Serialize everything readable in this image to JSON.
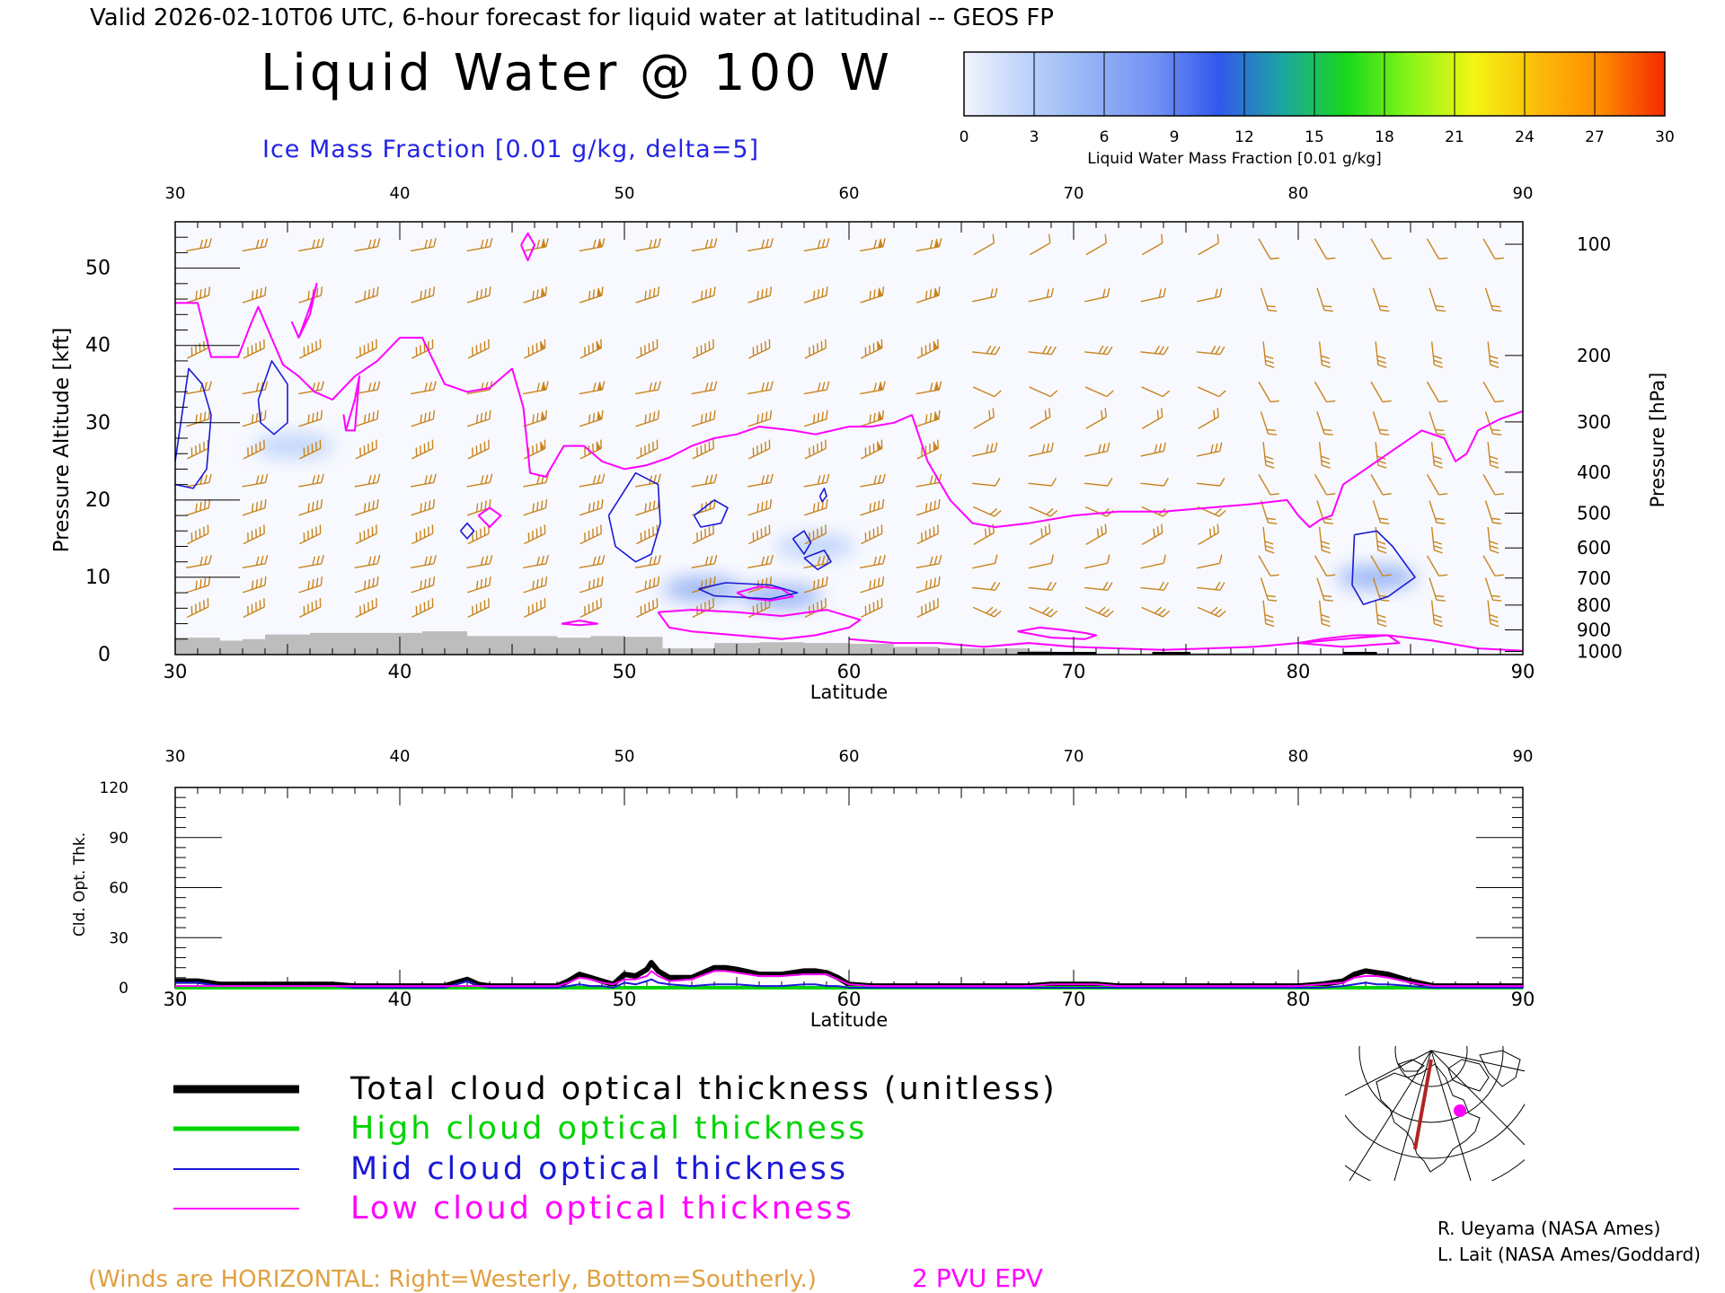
{
  "header": {
    "valid_line": "Valid 2026-02-10T06 UTC, 6-hour forecast for liquid water at latitudinal -- GEOS FP",
    "title": "Liquid Water @ 100 W",
    "ice_label": "Ice Mass Fraction [0.01 g/kg, delta=5]"
  },
  "colorbar": {
    "ticks": [
      "0",
      "3",
      "6",
      "9",
      "12",
      "15",
      "18",
      "21",
      "24",
      "27",
      "30"
    ],
    "label": "Liquid Water Mass Fraction [0.01 g/kg]",
    "colors": [
      "#f1f4fd",
      "#bcd2fa",
      "#94b2f5",
      "#7391f3",
      "#3158ee",
      "#1da6a1",
      "#17d81a",
      "#88f519",
      "#f3f514",
      "#fbbc09",
      "#fd8a00",
      "#f52b00"
    ]
  },
  "colors": {
    "ice_contour": "#1a1ad6",
    "epv_contour": "#ff00ff",
    "wind_barb": "#c8841e",
    "terrain": "#bdbdbd",
    "total_line": "#000000",
    "high_line": "#00d400",
    "mid_line": "#1a1ad6",
    "low_line": "#ff00ff"
  },
  "chart_data": [
    {
      "type": "heatmap",
      "title": "Liquid Water @ 100 W",
      "xlabel": "Latitude",
      "ylabel_left": "Pressure Altitude [kft]",
      "ylabel_right": "Pressure [hPa]",
      "x_ticks": [
        "30",
        "40",
        "50",
        "60",
        "70",
        "80",
        "90"
      ],
      "top_x_ticks": [
        "30",
        "40",
        "50",
        "60",
        "70",
        "80",
        "90"
      ],
      "y_ticks": [
        "0",
        "10",
        "20",
        "30",
        "40",
        "50"
      ],
      "pressure_ticks": [
        "100",
        "200",
        "300",
        "400",
        "500",
        "600",
        "700",
        "800",
        "900",
        "1000"
      ],
      "xlim": [
        30,
        90
      ],
      "ylim": [
        0,
        56
      ],
      "liquid_water_patches": [
        {
          "lat": 53.5,
          "alt": 8.5,
          "value": 2
        },
        {
          "lat": 57.0,
          "alt": 7.5,
          "value": 2
        },
        {
          "lat": 83.5,
          "alt": 10.0,
          "value": 2
        },
        {
          "lat": 35.3,
          "alt": 27.0,
          "value": 1
        },
        {
          "lat": 58.5,
          "alt": 14.0,
          "value": 1
        }
      ],
      "ice_contours": [
        {
          "lat": [
            30.0,
            30.8,
            31.4,
            31.6,
            31.2,
            30.6,
            30.0
          ],
          "alt": [
            22.0,
            21.5,
            24.0,
            31.0,
            35.0,
            37.0,
            25.0
          ]
        },
        {
          "lat": [
            33.7,
            34.3,
            35.0,
            35.0,
            34.4,
            33.8,
            33.7
          ],
          "alt": [
            33.0,
            38.0,
            35.0,
            30.0,
            28.5,
            30.0,
            33.0
          ]
        },
        {
          "lat": [
            42.7,
            43.0,
            43.3,
            43.0,
            42.7
          ],
          "alt": [
            16.0,
            17.0,
            16.0,
            15.0,
            16.0
          ]
        },
        {
          "lat": [
            49.3,
            50.5,
            51.5,
            51.6,
            51.2,
            50.5,
            49.6,
            49.3
          ],
          "alt": [
            18.0,
            23.5,
            22.0,
            17.0,
            13.0,
            12.0,
            14.0,
            18.0
          ]
        },
        {
          "lat": [
            53.1,
            54.0,
            54.6,
            54.3,
            53.4,
            53.1
          ],
          "alt": [
            18.0,
            20.0,
            19.0,
            17.0,
            16.5,
            18.0
          ]
        },
        {
          "lat": [
            53.3,
            54.5,
            56.5,
            57.7,
            56.5,
            54.0,
            53.3
          ],
          "alt": [
            8.5,
            9.3,
            9.0,
            8.0,
            7.2,
            7.6,
            8.5
          ]
        },
        {
          "lat": [
            57.5,
            58.0,
            58.3,
            58.0,
            57.5
          ],
          "alt": [
            15.0,
            16.0,
            14.5,
            13.0,
            15.0
          ]
        },
        {
          "lat": [
            58.0,
            58.9,
            59.2,
            58.6,
            58.0
          ],
          "alt": [
            12.5,
            13.5,
            12.0,
            11.0,
            12.5
          ]
        },
        {
          "lat": [
            58.7,
            58.9,
            59.0,
            58.8,
            58.7
          ],
          "alt": [
            20.5,
            21.5,
            20.5,
            19.8,
            20.5
          ]
        },
        {
          "lat": [
            82.5,
            83.5,
            84.2,
            85.2,
            84.0,
            82.9,
            82.4,
            82.5
          ],
          "alt": [
            15.5,
            16.0,
            14.0,
            10.0,
            7.5,
            6.5,
            9.0,
            15.5
          ]
        }
      ],
      "epv_contours": [
        {
          "lat": [
            30.0,
            31.0,
            31.6,
            32.8,
            33.4,
            33.7,
            34.8,
            35.5,
            36.2,
            37.0,
            38.0,
            39.0,
            40.0,
            41.0,
            42.0,
            43.0,
            44.0,
            45.0,
            45.5,
            45.8,
            46.5,
            47.3,
            48.2,
            49.0,
            50.0,
            51.0,
            52.0,
            53.0,
            54.0,
            55.0,
            56.0,
            57.5,
            58.5,
            60.0,
            61.0,
            62.0,
            62.8,
            63.5,
            64.5,
            65.5,
            66.5,
            68.0,
            70.0,
            72.0,
            74.0,
            76.0,
            78.0,
            79.5,
            80.0,
            80.5,
            81.0,
            81.5,
            82.0,
            83.0,
            84.0,
            85.5,
            86.5,
            87.0,
            87.5,
            88.0,
            89.0,
            90.0
          ],
          "alt": [
            45.5,
            45.5,
            38.5,
            38.5,
            43.0,
            45.0,
            37.5,
            36.0,
            34.0,
            33.0,
            36.0,
            38.0,
            41.0,
            41.0,
            35.0,
            34.0,
            34.5,
            37.0,
            32.0,
            23.5,
            23.0,
            27.0,
            27.0,
            25.0,
            24.0,
            24.5,
            25.5,
            27.0,
            28.0,
            28.5,
            29.5,
            29.0,
            28.5,
            29.5,
            29.5,
            30.0,
            31.0,
            25.0,
            20.0,
            17.0,
            16.5,
            17.0,
            18.0,
            18.5,
            18.5,
            19.0,
            19.5,
            20.0,
            18.0,
            16.5,
            17.5,
            18.0,
            22.0,
            24.0,
            26.0,
            29.0,
            28.0,
            25.0,
            26.0,
            29.0,
            30.5,
            31.5
          ]
        },
        {
          "lat": [
            35.5,
            36.0,
            36.3,
            36.0,
            35.5,
            35.2,
            35.5
          ],
          "alt": [
            41.0,
            44.0,
            48.0,
            45.0,
            41.0,
            43.0,
            41.0
          ]
        },
        {
          "lat": [
            37.6,
            38.0,
            38.2,
            38.0,
            37.6,
            37.5,
            37.6
          ],
          "alt": [
            29.0,
            33.0,
            36.0,
            29.0,
            29.0,
            31.0,
            29.0
          ]
        },
        {
          "lat": [
            45.4,
            45.7,
            46.0,
            45.7,
            45.4
          ],
          "alt": [
            53.0,
            51.0,
            53.0,
            54.5,
            53.0
          ]
        },
        {
          "lat": [
            43.5,
            44.0,
            44.5,
            44.0,
            43.5
          ],
          "alt": [
            18.0,
            19.0,
            18.0,
            16.5,
            18.0
          ]
        },
        {
          "lat": [
            47.2,
            48.0,
            48.8,
            48.0,
            47.2
          ],
          "alt": [
            4.0,
            4.4,
            4.0,
            3.8,
            4.0
          ]
        },
        {
          "lat": [
            51.5,
            53.0,
            55.0,
            57.0,
            59.0,
            60.5,
            60.0,
            58.5,
            57.0,
            55.0,
            53.0,
            52.0,
            51.5
          ],
          "alt": [
            5.5,
            5.8,
            5.5,
            5.0,
            5.8,
            4.5,
            3.5,
            2.5,
            2.0,
            2.5,
            3.0,
            3.5,
            5.5
          ]
        },
        {
          "lat": [
            55.0,
            56.0,
            57.0,
            57.5,
            56.5,
            55.5,
            55.0
          ],
          "alt": [
            8.0,
            8.8,
            8.5,
            7.5,
            7.0,
            7.3,
            8.0
          ]
        },
        {
          "lat": [
            60.0,
            62.0,
            64.0,
            66.0,
            68.0,
            70.0,
            72.0,
            74.0,
            76.0,
            78.0,
            80.0,
            82.0,
            84.0,
            86.0,
            88.0,
            90.0
          ],
          "alt": [
            2.0,
            1.5,
            1.5,
            1.0,
            1.5,
            1.0,
            0.8,
            0.6,
            0.8,
            1.0,
            1.5,
            2.0,
            2.5,
            1.8,
            0.8,
            0.5
          ]
        },
        {
          "lat": [
            67.5,
            68.5,
            69.5,
            70.5,
            71.0,
            70.5,
            69.0,
            67.5
          ],
          "alt": [
            3.0,
            3.5,
            3.2,
            2.8,
            2.5,
            2.0,
            2.2,
            3.0
          ]
        },
        {
          "lat": [
            80.0,
            81.0,
            82.5,
            84.0,
            84.5,
            83.0,
            82.0,
            80.0
          ],
          "alt": [
            1.5,
            2.0,
            2.5,
            2.5,
            1.5,
            1.2,
            1.0,
            1.5
          ]
        }
      ],
      "terrain": {
        "lat": [
          30.0,
          31.0,
          32.0,
          33.0,
          34.0,
          35.0,
          36.0,
          38.0,
          40.0,
          41.0,
          43.0,
          45.0,
          47.0,
          48.5,
          50.0,
          51.0,
          51.7,
          52.5,
          54.0,
          56.0,
          58.0,
          60.0,
          62.0,
          64.0,
          66.0,
          68.0,
          69.0,
          70.0,
          72.0,
          74.0,
          76.0,
          78.0,
          80.0,
          82.0,
          84.0,
          86.0,
          88.0,
          90.0
        ],
        "alt": [
          2.2,
          2.2,
          1.8,
          2.0,
          2.6,
          2.6,
          2.8,
          2.8,
          2.8,
          3.0,
          2.4,
          2.4,
          2.2,
          2.4,
          2.3,
          2.3,
          0.8,
          0.8,
          1.5,
          1.6,
          1.5,
          1.4,
          1.0,
          0.8,
          0.8,
          0.5,
          0.2,
          0.1,
          0.0,
          0.2,
          0.2,
          0.0,
          0.0,
          0.2,
          0.1,
          0.0,
          0.0,
          0.0
        ]
      }
    },
    {
      "type": "line",
      "xlabel": "Latitude",
      "ylabel": "Cld. Opt. Thk.",
      "x_ticks": [
        "30",
        "40",
        "50",
        "60",
        "70",
        "80",
        "90"
      ],
      "top_x_ticks": [
        "30",
        "40",
        "50",
        "60",
        "70",
        "80",
        "90"
      ],
      "y_ticks": [
        "0",
        "30",
        "60",
        "90",
        "120"
      ],
      "xlim": [
        30,
        90
      ],
      "ylim": [
        0,
        120
      ],
      "x": [
        30,
        31,
        31.5,
        32,
        33,
        34,
        35,
        36,
        37,
        38,
        39,
        40,
        41,
        42,
        42.5,
        43,
        43.5,
        44,
        45,
        46,
        47,
        47.5,
        48,
        48.5,
        49,
        49.5,
        50,
        50.5,
        51,
        51.2,
        51.5,
        52,
        53,
        54,
        54.5,
        55,
        56,
        57,
        58,
        58.5,
        59,
        59.5,
        60,
        61,
        63,
        65,
        67,
        68,
        69,
        70,
        71,
        72,
        74,
        76,
        78,
        80,
        81,
        82,
        82.5,
        83,
        83.5,
        84,
        85,
        86,
        87,
        88,
        90
      ],
      "series": [
        {
          "name": "Total cloud optical thickness (unitless)",
          "values": [
            4,
            4,
            3,
            2,
            2,
            2,
            2,
            2,
            2,
            1,
            1,
            1,
            1,
            1,
            3,
            5,
            2,
            1,
            1,
            1,
            1,
            4,
            8,
            6,
            4,
            2,
            8,
            7,
            11,
            15,
            10,
            6,
            6,
            12,
            12,
            11,
            8,
            8,
            10,
            10,
            9,
            6,
            2,
            1,
            1,
            1,
            1,
            1,
            2,
            2,
            2,
            1,
            1,
            1,
            1,
            1,
            2,
            4,
            8,
            10,
            9,
            8,
            4,
            1,
            1,
            1,
            1
          ]
        },
        {
          "name": "High cloud optical thickness",
          "values": [
            0,
            0,
            0,
            0,
            0,
            0,
            0,
            0,
            0,
            0,
            0,
            0,
            0,
            0,
            0,
            0,
            0,
            0,
            0,
            0,
            0,
            0,
            0,
            0,
            0,
            0,
            0,
            0,
            0,
            0,
            0,
            0,
            0,
            0,
            0,
            0,
            0,
            0,
            0,
            0,
            0,
            0,
            0,
            0,
            0,
            0,
            0,
            0,
            0,
            0,
            0,
            0,
            0,
            0,
            0,
            0,
            0,
            0,
            0,
            0,
            0,
            0,
            0,
            0,
            0,
            0,
            0
          ]
        },
        {
          "name": "Mid cloud optical thickness",
          "values": [
            3,
            3,
            2,
            1,
            1,
            1,
            1,
            1,
            1,
            0,
            0,
            0,
            0,
            0,
            2,
            4,
            1,
            0,
            0,
            0,
            0,
            1,
            2,
            1,
            1,
            0,
            3,
            2,
            4,
            5,
            3,
            2,
            1,
            2,
            2,
            2,
            1,
            1,
            2,
            2,
            1,
            1,
            0,
            0,
            0,
            0,
            0,
            0,
            0,
            0,
            0,
            0,
            0,
            0,
            0,
            0,
            0,
            1,
            2,
            3,
            2,
            2,
            1,
            0,
            0,
            0,
            0
          ]
        },
        {
          "name": "Low cloud optical thickness",
          "values": [
            1,
            1,
            1,
            1,
            1,
            1,
            1,
            1,
            1,
            1,
            1,
            1,
            1,
            1,
            1,
            1,
            1,
            1,
            1,
            1,
            1,
            3,
            6,
            5,
            3,
            2,
            5,
            5,
            7,
            10,
            7,
            4,
            5,
            10,
            10,
            9,
            7,
            7,
            8,
            8,
            8,
            5,
            2,
            1,
            1,
            1,
            1,
            1,
            2,
            2,
            2,
            1,
            1,
            1,
            1,
            1,
            2,
            3,
            6,
            7,
            7,
            6,
            3,
            1,
            1,
            1,
            1
          ]
        }
      ]
    }
  ],
  "legend": {
    "total": "Total cloud optical thickness (unitless)",
    "high": "High cloud optical thickness",
    "mid": "Mid cloud optical thickness",
    "low": "Low cloud optical thickness"
  },
  "credits": {
    "line1": "R. Ueyama (NASA Ames)",
    "line2": "L. Lait (NASA Ames/Goddard)"
  },
  "footer": {
    "winds_note": "(Winds are HORIZONTAL: Right=Westerly, Bottom=Southerly.)",
    "epv_label": "2 PVU EPV"
  }
}
